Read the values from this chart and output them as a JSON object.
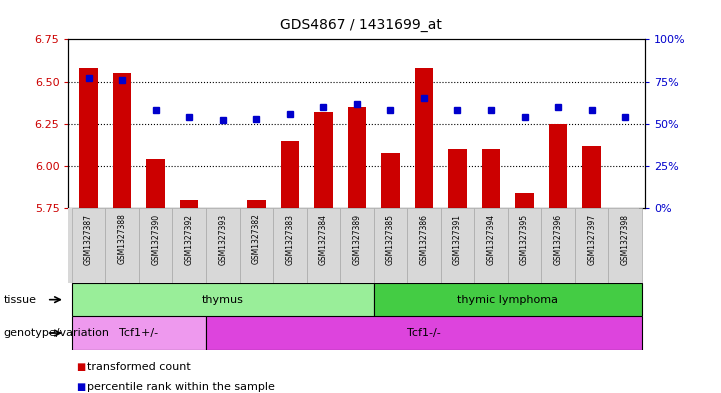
{
  "title": "GDS4867 / 1431699_at",
  "samples": [
    "GSM1327387",
    "GSM1327388",
    "GSM1327390",
    "GSM1327392",
    "GSM1327393",
    "GSM1327382",
    "GSM1327383",
    "GSM1327384",
    "GSM1327389",
    "GSM1327385",
    "GSM1327386",
    "GSM1327391",
    "GSM1327394",
    "GSM1327395",
    "GSM1327396",
    "GSM1327397",
    "GSM1327398"
  ],
  "transformed_count": [
    6.58,
    6.55,
    6.04,
    5.8,
    5.75,
    5.8,
    6.15,
    6.32,
    6.35,
    6.08,
    6.58,
    6.1,
    6.1,
    5.84,
    6.25,
    6.12,
    5.75
  ],
  "percentile_rank": [
    77,
    76,
    58,
    54,
    52,
    53,
    56,
    60,
    62,
    58,
    65,
    58,
    58,
    54,
    60,
    58,
    54
  ],
  "ylim_left": [
    5.75,
    6.75
  ],
  "ylim_right": [
    0,
    100
  ],
  "yticks_left": [
    5.75,
    6.0,
    6.25,
    6.5,
    6.75
  ],
  "yticks_right": [
    0,
    25,
    50,
    75,
    100
  ],
  "bar_color": "#cc0000",
  "dot_color": "#0000cc",
  "bar_bottom": 5.75,
  "tissue_groups": [
    {
      "label": "thymus",
      "start": 0,
      "end": 9,
      "color": "#99ee99"
    },
    {
      "label": "thymic lymphoma",
      "start": 9,
      "end": 17,
      "color": "#44cc44"
    }
  ],
  "genotype_groups": [
    {
      "label": "Tcf1+/-",
      "start": 0,
      "end": 4,
      "color": "#ee99ee"
    },
    {
      "label": "Tcf1-/-",
      "start": 4,
      "end": 17,
      "color": "#dd44dd"
    }
  ],
  "tissue_row_label": "tissue",
  "genotype_row_label": "genotype/variation",
  "legend_items": [
    {
      "label": "transformed count",
      "color": "#cc0000"
    },
    {
      "label": "percentile rank within the sample",
      "color": "#0000cc"
    }
  ],
  "grid_yticks": [
    6.0,
    6.25,
    6.5
  ],
  "background_color": "#ffffff",
  "label_area_bg": "#d8d8d8"
}
